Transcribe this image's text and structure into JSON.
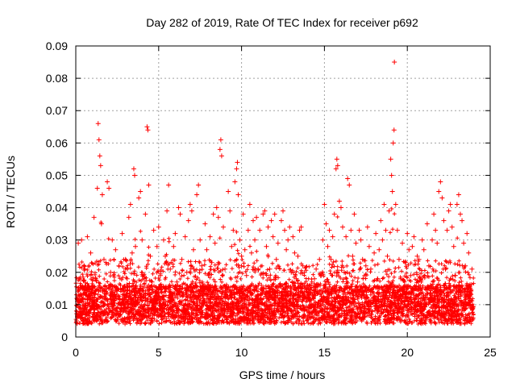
{
  "chart_data": {
    "type": "scatter",
    "title": "Day 282 of 2019, Rate Of TEC Index for receiver p692",
    "xlabel": "GPS time / hours",
    "ylabel": "ROTI / TECUs",
    "xlim": [
      0,
      25
    ],
    "ylim": [
      0,
      0.09
    ],
    "xticks": [
      0,
      5,
      10,
      15,
      20,
      25
    ],
    "xtick_labels": [
      "0",
      "5",
      "10",
      "15",
      "20",
      "25"
    ],
    "yticks": [
      0,
      0.01,
      0.02,
      0.03,
      0.04,
      0.05,
      0.06,
      0.07,
      0.08,
      0.09
    ],
    "ytick_labels": [
      "0",
      "0.01",
      "0.02",
      "0.03",
      "0.04",
      "0.05",
      "0.06",
      "0.07",
      "0.08",
      "0.09"
    ],
    "grid": true,
    "marker": "plus",
    "series": [
      {
        "color": "#ff0000",
        "points": [
          [
            0.05,
            0.005
          ],
          [
            0.1,
            0.011
          ],
          [
            0.15,
            0.029
          ],
          [
            0.2,
            0.018
          ],
          [
            0.3,
            0.008
          ],
          [
            0.35,
            0.03
          ],
          [
            0.45,
            0.012
          ],
          [
            0.5,
            0.022
          ],
          [
            0.6,
            0.009
          ],
          [
            0.7,
            0.031
          ],
          [
            0.8,
            0.015
          ],
          [
            0.9,
            0.026
          ],
          [
            1.0,
            0.012
          ],
          [
            1.1,
            0.037
          ],
          [
            1.2,
            0.018
          ],
          [
            1.3,
            0.046
          ],
          [
            1.35,
            0.066
          ],
          [
            1.4,
            0.061
          ],
          [
            1.45,
            0.056
          ],
          [
            1.5,
            0.053
          ],
          [
            1.55,
            0.035
          ],
          [
            1.6,
            0.044
          ],
          [
            1.7,
            0.024
          ],
          [
            1.8,
            0.014
          ],
          [
            1.9,
            0.048
          ],
          [
            2.0,
            0.046
          ],
          [
            2.1,
            0.02
          ],
          [
            2.2,
            0.03
          ],
          [
            2.3,
            0.013
          ],
          [
            2.4,
            0.027
          ],
          [
            2.5,
            0.009
          ],
          [
            2.6,
            0.022
          ],
          [
            2.7,
            0.016
          ],
          [
            2.8,
            0.032
          ],
          [
            2.9,
            0.011
          ],
          [
            3.0,
            0.024
          ],
          [
            3.1,
            0.018
          ],
          [
            3.2,
            0.037
          ],
          [
            3.3,
            0.041
          ],
          [
            3.4,
            0.026
          ],
          [
            3.5,
            0.052
          ],
          [
            3.55,
            0.05
          ],
          [
            3.6,
            0.028
          ],
          [
            3.7,
            0.015
          ],
          [
            3.8,
            0.043
          ],
          [
            3.9,
            0.045
          ],
          [
            4.0,
            0.03
          ],
          [
            4.1,
            0.012
          ],
          [
            4.2,
            0.038
          ],
          [
            4.3,
            0.065
          ],
          [
            4.35,
            0.064
          ],
          [
            4.4,
            0.047
          ],
          [
            4.5,
            0.025
          ],
          [
            4.6,
            0.017
          ],
          [
            4.7,
            0.033
          ],
          [
            4.8,
            0.012
          ],
          [
            4.9,
            0.028
          ],
          [
            5.0,
            0.034
          ],
          [
            5.1,
            0.019
          ],
          [
            5.2,
            0.014
          ],
          [
            5.3,
            0.03
          ],
          [
            5.4,
            0.025
          ],
          [
            5.5,
            0.039
          ],
          [
            5.6,
            0.047
          ],
          [
            5.7,
            0.021
          ],
          [
            5.8,
            0.012
          ],
          [
            5.9,
            0.028
          ],
          [
            6.0,
            0.032
          ],
          [
            6.1,
            0.017
          ],
          [
            6.2,
            0.04
          ],
          [
            6.3,
            0.038
          ],
          [
            6.4,
            0.024
          ],
          [
            6.5,
            0.013
          ],
          [
            6.6,
            0.031
          ],
          [
            6.7,
            0.02
          ],
          [
            6.8,
            0.036
          ],
          [
            6.9,
            0.041
          ],
          [
            7.0,
            0.039
          ],
          [
            7.1,
            0.027
          ],
          [
            7.2,
            0.016
          ],
          [
            7.3,
            0.044
          ],
          [
            7.4,
            0.047
          ],
          [
            7.5,
            0.03
          ],
          [
            7.6,
            0.022
          ],
          [
            7.7,
            0.014
          ],
          [
            7.8,
            0.035
          ],
          [
            7.9,
            0.027
          ],
          [
            8.0,
            0.019
          ],
          [
            8.1,
            0.031
          ],
          [
            8.2,
            0.023
          ],
          [
            8.3,
            0.038
          ],
          [
            8.4,
            0.029
          ],
          [
            8.5,
            0.04
          ],
          [
            8.6,
            0.037
          ],
          [
            8.7,
            0.058
          ],
          [
            8.75,
            0.061
          ],
          [
            8.8,
            0.056
          ],
          [
            8.9,
            0.034
          ],
          [
            9.0,
            0.021
          ],
          [
            9.1,
            0.014
          ],
          [
            9.2,
            0.045
          ],
          [
            9.3,
            0.039
          ],
          [
            9.4,
            0.028
          ],
          [
            9.5,
            0.033
          ],
          [
            9.6,
            0.048
          ],
          [
            9.7,
            0.052
          ],
          [
            9.75,
            0.054
          ],
          [
            9.8,
            0.044
          ],
          [
            9.9,
            0.03
          ],
          [
            10.0,
            0.025
          ],
          [
            10.1,
            0.038
          ],
          [
            10.2,
            0.027
          ],
          [
            10.3,
            0.019
          ],
          [
            10.4,
            0.033
          ],
          [
            10.5,
            0.041
          ],
          [
            10.6,
            0.026
          ],
          [
            10.7,
            0.036
          ],
          [
            10.8,
            0.03
          ],
          [
            10.9,
            0.037
          ],
          [
            11.0,
            0.021
          ],
          [
            11.1,
            0.033
          ],
          [
            11.2,
            0.016
          ],
          [
            11.3,
            0.038
          ],
          [
            11.4,
            0.039
          ],
          [
            11.5,
            0.028
          ],
          [
            11.6,
            0.034
          ],
          [
            11.7,
            0.021
          ],
          [
            11.8,
            0.036
          ],
          [
            11.9,
            0.031
          ],
          [
            12.0,
            0.038
          ],
          [
            12.1,
            0.024
          ],
          [
            12.2,
            0.029
          ],
          [
            12.3,
            0.016
          ],
          [
            12.4,
            0.036
          ],
          [
            12.5,
            0.039
          ],
          [
            12.6,
            0.033
          ],
          [
            12.7,
            0.027
          ],
          [
            12.8,
            0.03
          ],
          [
            12.9,
            0.034
          ],
          [
            13.0,
            0.02
          ],
          [
            13.1,
            0.031
          ],
          [
            13.2,
            0.026
          ],
          [
            13.3,
            0.018
          ],
          [
            13.4,
            0.025
          ],
          [
            13.5,
            0.033
          ],
          [
            13.6,
            0.034
          ],
          [
            13.7,
            0.022
          ],
          [
            13.8,
            0.014
          ],
          [
            13.9,
            0.012
          ],
          [
            14.0,
            0.015
          ],
          [
            14.1,
            0.011
          ],
          [
            14.2,
            0.016
          ],
          [
            14.3,
            0.013
          ],
          [
            14.4,
            0.018
          ],
          [
            14.5,
            0.021
          ],
          [
            14.6,
            0.014
          ],
          [
            14.7,
            0.024
          ],
          [
            14.8,
            0.019
          ],
          [
            14.9,
            0.03
          ],
          [
            15.0,
            0.041
          ],
          [
            15.1,
            0.035
          ],
          [
            15.2,
            0.028
          ],
          [
            15.3,
            0.033
          ],
          [
            15.4,
            0.024
          ],
          [
            15.5,
            0.031
          ],
          [
            15.6,
            0.038
          ],
          [
            15.7,
            0.052
          ],
          [
            15.75,
            0.055
          ],
          [
            15.8,
            0.053
          ],
          [
            15.9,
            0.042
          ],
          [
            16.0,
            0.04
          ],
          [
            16.1,
            0.034
          ],
          [
            16.2,
            0.02
          ],
          [
            16.3,
            0.031
          ],
          [
            16.4,
            0.049
          ],
          [
            16.5,
            0.047
          ],
          [
            16.6,
            0.033
          ],
          [
            16.7,
            0.025
          ],
          [
            16.8,
            0.038
          ],
          [
            16.9,
            0.029
          ],
          [
            17.0,
            0.017
          ],
          [
            17.1,
            0.033
          ],
          [
            17.2,
            0.03
          ],
          [
            17.3,
            0.024
          ],
          [
            17.4,
            0.013
          ],
          [
            17.5,
            0.022
          ],
          [
            17.6,
            0.034
          ],
          [
            17.7,
            0.028
          ],
          [
            17.8,
            0.021
          ],
          [
            17.9,
            0.014
          ],
          [
            18.0,
            0.026
          ],
          [
            18.1,
            0.032
          ],
          [
            18.2,
            0.018
          ],
          [
            18.3,
            0.027
          ],
          [
            18.4,
            0.036
          ],
          [
            18.5,
            0.03
          ],
          [
            18.6,
            0.041
          ],
          [
            18.7,
            0.033
          ],
          [
            18.8,
            0.025
          ],
          [
            18.9,
            0.039
          ],
          [
            19.0,
            0.055
          ],
          [
            19.05,
            0.05
          ],
          [
            19.1,
            0.045
          ],
          [
            19.15,
            0.06
          ],
          [
            19.2,
            0.064
          ],
          [
            19.22,
            0.085
          ],
          [
            19.3,
            0.041
          ],
          [
            19.4,
            0.033
          ],
          [
            19.5,
            0.024
          ],
          [
            19.6,
            0.018
          ],
          [
            19.7,
            0.029
          ],
          [
            19.8,
            0.014
          ],
          [
            19.9,
            0.023
          ],
          [
            20.0,
            0.032
          ],
          [
            20.1,
            0.027
          ],
          [
            20.2,
            0.019
          ],
          [
            20.3,
            0.028
          ],
          [
            20.4,
            0.031
          ],
          [
            20.5,
            0.015
          ],
          [
            20.6,
            0.025
          ],
          [
            20.7,
            0.024
          ],
          [
            20.8,
            0.018
          ],
          [
            20.9,
            0.03
          ],
          [
            21.0,
            0.027
          ],
          [
            21.1,
            0.013
          ],
          [
            21.2,
            0.035
          ],
          [
            21.3,
            0.022
          ],
          [
            21.4,
            0.016
          ],
          [
            21.5,
            0.03
          ],
          [
            21.6,
            0.038
          ],
          [
            21.7,
            0.033
          ],
          [
            21.8,
            0.029
          ],
          [
            21.9,
            0.045
          ],
          [
            22.0,
            0.048
          ],
          [
            22.1,
            0.043
          ],
          [
            22.2,
            0.036
          ],
          [
            22.3,
            0.021
          ],
          [
            22.4,
            0.033
          ],
          [
            22.5,
            0.039
          ],
          [
            22.6,
            0.041
          ],
          [
            22.7,
            0.034
          ],
          [
            22.8,
            0.028
          ],
          [
            22.9,
            0.019
          ],
          [
            23.0,
            0.041
          ],
          [
            23.1,
            0.044
          ],
          [
            23.2,
            0.038
          ],
          [
            23.3,
            0.036
          ],
          [
            23.4,
            0.029
          ],
          [
            23.5,
            0.022
          ],
          [
            23.6,
            0.032
          ],
          [
            23.7,
            0.026
          ],
          [
            23.8,
            0.015
          ],
          [
            23.9,
            0.021
          ],
          [
            23.95,
            0.009
          ]
        ]
      }
    ]
  }
}
